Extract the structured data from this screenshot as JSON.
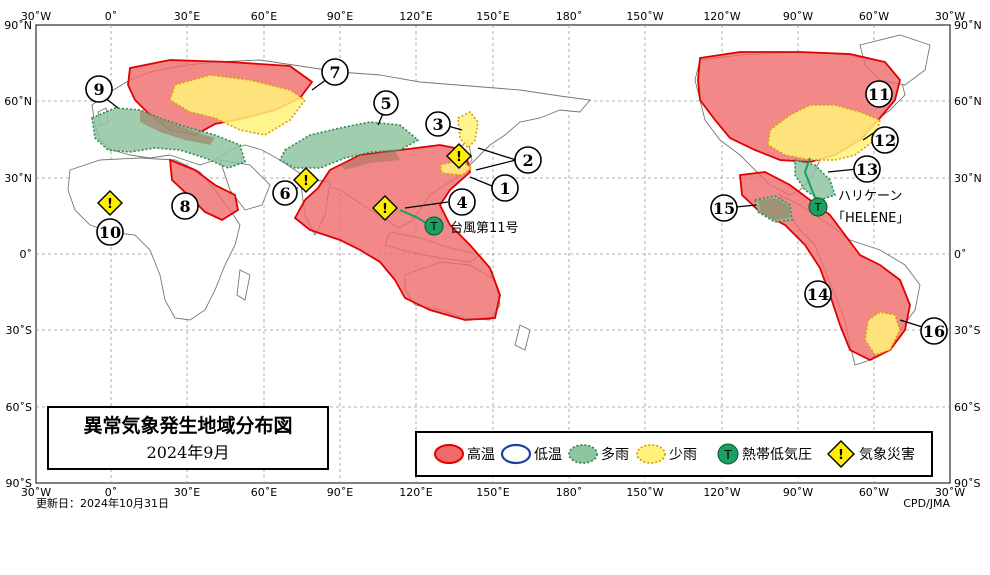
{
  "title": {
    "main": "異常気象発生地域分布図",
    "date": "2024年9月"
  },
  "footer": {
    "updated": "更新日：2024年10月31日",
    "credit": "CPD/JMA"
  },
  "axes": {
    "longitude_labels": [
      "30˚W",
      "0˚",
      "30˚E",
      "60˚E",
      "90˚E",
      "120˚E",
      "150˚E",
      "180˚",
      "150˚W",
      "120˚W",
      "90˚W",
      "60˚W",
      "30˚W"
    ],
    "latitude_labels": [
      "90˚N",
      "60˚N",
      "30˚N",
      "0˚",
      "30˚S",
      "60˚S",
      "90˚S"
    ]
  },
  "legend": {
    "items": [
      {
        "label": "高温",
        "fill": "#f06a6a",
        "stroke": "#e00000"
      },
      {
        "label": "低温",
        "fill": "#ffffff",
        "stroke": "#1f3f9f"
      },
      {
        "label": "多雨",
        "fill": "#8fc4a0",
        "stroke": "#2e8b57"
      },
      {
        "label": "少雨",
        "fill": "#fff27a",
        "stroke": "#d9a000"
      },
      {
        "label": "熱帯低気圧",
        "symbol": "T",
        "fill": "#1aa060"
      },
      {
        "label": "気象災害",
        "symbol": "!",
        "fill": "#ffee00"
      }
    ]
  },
  "callouts": [
    "1",
    "2",
    "3",
    "4",
    "5",
    "6",
    "7",
    "8",
    "9",
    "10",
    "11",
    "12",
    "13",
    "14",
    "15",
    "16"
  ],
  "storms": [
    {
      "name": "台風第11号",
      "symbol": "T"
    },
    {
      "name": "ハリケーン\n「HELENE」",
      "line1": "ハリケーン",
      "line2": "「HELENE」",
      "symbol": "T"
    }
  ],
  "disaster_symbol": "!",
  "colors": {
    "warm": "#f06a6a",
    "wet": "#8fc4a0",
    "dry": "#fff27a",
    "tc": "#1aa060",
    "disaster": "#ffee00"
  }
}
